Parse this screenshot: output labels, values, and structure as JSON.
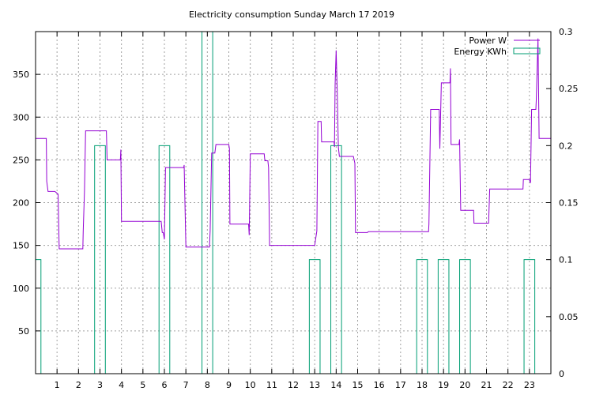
{
  "chart_data": {
    "type": "line",
    "title": "Electricity consumption Sunday March 17 2019",
    "xlabel": "",
    "ylabel": "",
    "y2label": "",
    "grid": true,
    "legend_position": "top-right",
    "xlim": [
      0,
      24
    ],
    "ylim": [
      0,
      400
    ],
    "y2lim": [
      0,
      0.3
    ],
    "x_ticks": [
      1,
      2,
      3,
      4,
      5,
      6,
      7,
      8,
      9,
      10,
      11,
      12,
      13,
      14,
      15,
      16,
      17,
      18,
      19,
      20,
      21,
      22,
      23
    ],
    "y_ticks": [
      50,
      100,
      150,
      200,
      250,
      300,
      350
    ],
    "y2_ticks": [
      0,
      0.05,
      0.1,
      0.15,
      0.2,
      0.25,
      0.3
    ],
    "y2_tick_labels": [
      "0",
      "0.05",
      "0.1",
      "0.15",
      "0.2",
      "0.25",
      "0.3"
    ],
    "series": [
      {
        "name": "Power W",
        "axis": "left",
        "style": "line",
        "color": "#9400d3",
        "points": [
          [
            0.0,
            275
          ],
          [
            0.5,
            275
          ],
          [
            0.52,
            225
          ],
          [
            0.58,
            213
          ],
          [
            0.9,
            213
          ],
          [
            0.95,
            212
          ],
          [
            1.05,
            210
          ],
          [
            1.1,
            146
          ],
          [
            2.2,
            146
          ],
          [
            2.22,
            167
          ],
          [
            2.28,
            214
          ],
          [
            2.33,
            284
          ],
          [
            3.3,
            284
          ],
          [
            3.33,
            250
          ],
          [
            3.95,
            250
          ],
          [
            3.97,
            262
          ],
          [
            4.0,
            178
          ],
          [
            5.85,
            178
          ],
          [
            5.9,
            165
          ],
          [
            5.95,
            165
          ],
          [
            6.0,
            157
          ],
          [
            6.05,
            241
          ],
          [
            6.9,
            241
          ],
          [
            6.92,
            244
          ],
          [
            7.0,
            148
          ],
          [
            8.1,
            148
          ],
          [
            8.13,
            167
          ],
          [
            8.2,
            258
          ],
          [
            8.35,
            258
          ],
          [
            8.4,
            268
          ],
          [
            9.0,
            268
          ],
          [
            9.03,
            263
          ],
          [
            9.05,
            175
          ],
          [
            9.92,
            175
          ],
          [
            9.95,
            162
          ],
          [
            10.0,
            257
          ],
          [
            10.65,
            257
          ],
          [
            10.68,
            249
          ],
          [
            10.82,
            249
          ],
          [
            10.85,
            241
          ],
          [
            10.9,
            150
          ],
          [
            12.8,
            150
          ],
          [
            13.0,
            150
          ],
          [
            13.1,
            167
          ],
          [
            13.15,
            295
          ],
          [
            13.3,
            295
          ],
          [
            13.32,
            271
          ],
          [
            13.9,
            271
          ],
          [
            13.92,
            265
          ],
          [
            13.95,
            338
          ],
          [
            14.0,
            378
          ],
          [
            14.05,
            330
          ],
          [
            14.1,
            265
          ],
          [
            14.15,
            254
          ],
          [
            14.8,
            254
          ],
          [
            14.87,
            246
          ],
          [
            14.9,
            165
          ],
          [
            15.45,
            165
          ],
          [
            15.5,
            166
          ],
          [
            18.3,
            166
          ],
          [
            18.32,
            175
          ],
          [
            18.4,
            309
          ],
          [
            18.8,
            309
          ],
          [
            18.83,
            263
          ],
          [
            18.9,
            340
          ],
          [
            19.3,
            340
          ],
          [
            19.32,
            357
          ],
          [
            19.35,
            268
          ],
          [
            19.72,
            268
          ],
          [
            19.75,
            274
          ],
          [
            19.8,
            191
          ],
          [
            20.4,
            191
          ],
          [
            20.42,
            176
          ],
          [
            21.1,
            176
          ],
          [
            21.15,
            216
          ],
          [
            22.7,
            216
          ],
          [
            22.72,
            227
          ],
          [
            23.0,
            227
          ],
          [
            23.05,
            223
          ],
          [
            23.1,
            309
          ],
          [
            23.3,
            309
          ],
          [
            23.32,
            320
          ],
          [
            23.4,
            392
          ],
          [
            23.45,
            275
          ],
          [
            24.0,
            275
          ]
        ]
      },
      {
        "name": "Energy KWh",
        "axis": "right",
        "style": "steps",
        "color": "#009e73",
        "bars": [
          [
            0.0,
            0.25,
            0.1
          ],
          [
            2.75,
            3.25,
            0.2
          ],
          [
            5.75,
            6.25,
            0.2
          ],
          [
            7.75,
            8.25,
            0.3
          ],
          [
            12.75,
            13.25,
            0.1
          ],
          [
            13.75,
            14.25,
            0.2
          ],
          [
            17.75,
            18.25,
            0.1
          ],
          [
            18.75,
            19.25,
            0.1
          ],
          [
            19.75,
            20.25,
            0.1
          ],
          [
            22.75,
            23.25,
            0.1
          ]
        ]
      }
    ]
  }
}
